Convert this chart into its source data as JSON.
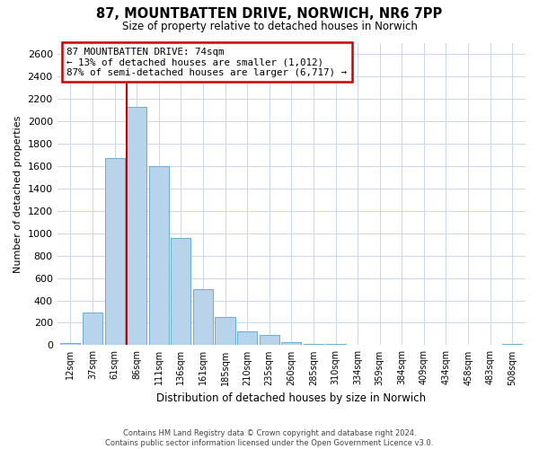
{
  "title": "87, MOUNTBATTEN DRIVE, NORWICH, NR6 7PP",
  "subtitle": "Size of property relative to detached houses in Norwich",
  "xlabel": "Distribution of detached houses by size in Norwich",
  "ylabel": "Number of detached properties",
  "bar_color": "#b8d4ea",
  "bar_edge_color": "#6aadd5",
  "categories": [
    "12sqm",
    "37sqm",
    "61sqm",
    "86sqm",
    "111sqm",
    "136sqm",
    "161sqm",
    "185sqm",
    "210sqm",
    "235sqm",
    "260sqm",
    "285sqm",
    "310sqm",
    "334sqm",
    "359sqm",
    "384sqm",
    "409sqm",
    "434sqm",
    "458sqm",
    "483sqm",
    "508sqm"
  ],
  "values": [
    20,
    295,
    1670,
    2130,
    1600,
    960,
    500,
    250,
    120,
    95,
    30,
    10,
    10,
    5,
    5,
    3,
    2,
    2,
    2,
    2,
    15
  ],
  "ylim": [
    0,
    2700
  ],
  "yticks": [
    0,
    200,
    400,
    600,
    800,
    1000,
    1200,
    1400,
    1600,
    1800,
    2000,
    2200,
    2400,
    2600
  ],
  "marker_bin_index": 3,
  "marker_color": "#cc0000",
  "annotation_title": "87 MOUNTBATTEN DRIVE: 74sqm",
  "annotation_line1": "← 13% of detached houses are smaller (1,012)",
  "annotation_line2": "87% of semi-detached houses are larger (6,717) →",
  "annotation_box_color": "#ffffff",
  "annotation_box_edge": "#cc0000",
  "footer_line1": "Contains HM Land Registry data © Crown copyright and database right 2024.",
  "footer_line2": "Contains public sector information licensed under the Open Government Licence v3.0.",
  "background_color": "#ffffff",
  "grid_color": "#c8d8ea"
}
